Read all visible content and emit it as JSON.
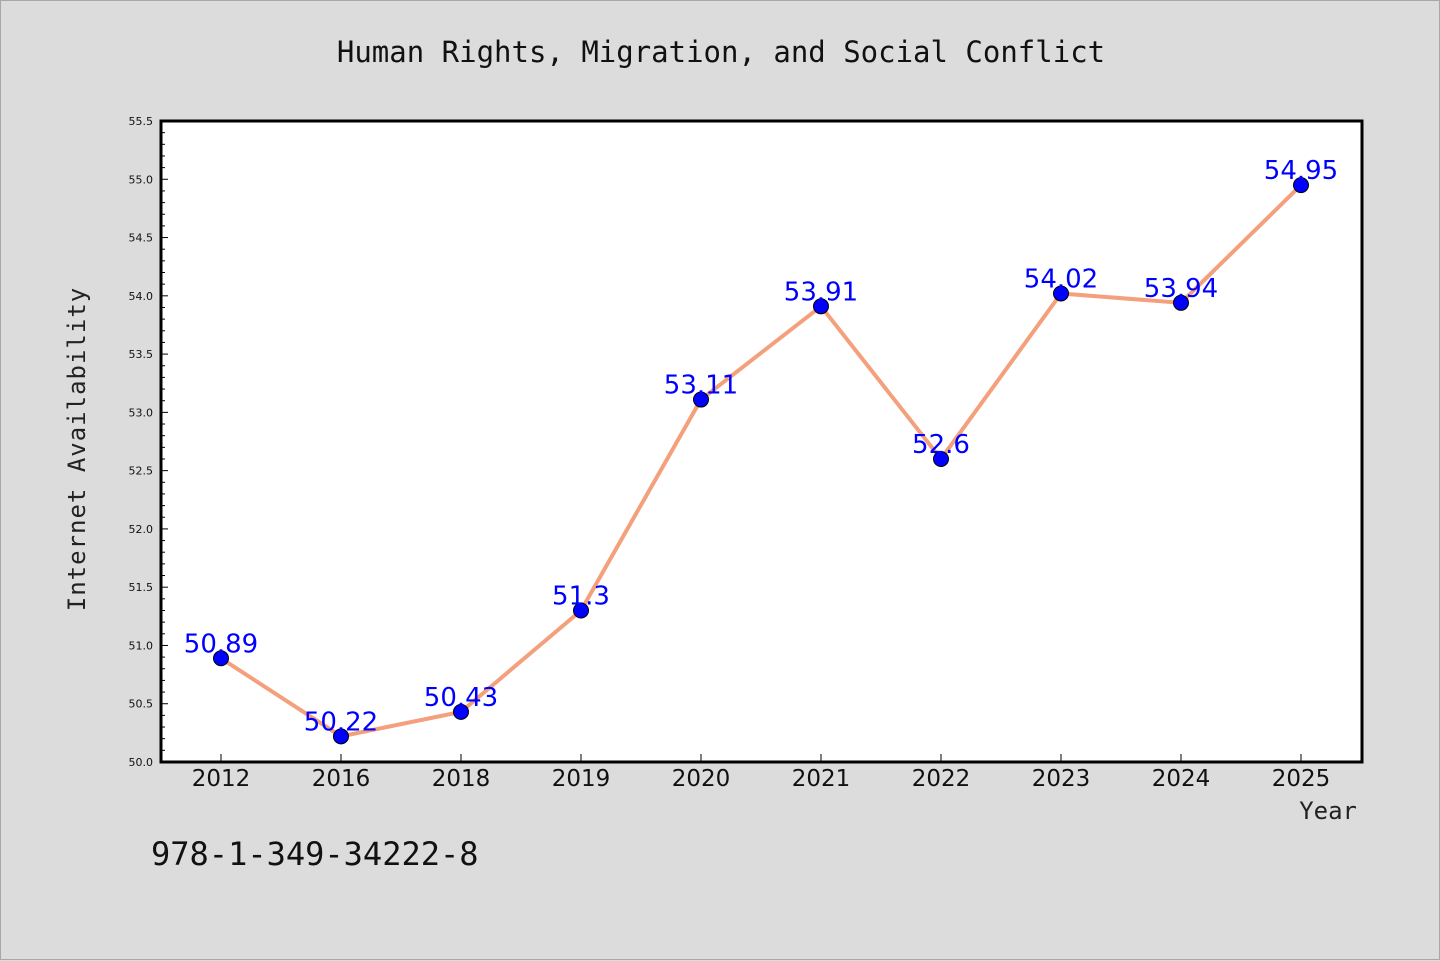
{
  "chart_data": {
    "type": "line",
    "title": "Human Rights, Migration, and Social Conflict",
    "xlabel": "Year",
    "ylabel": "Internet Availability",
    "categories": [
      "2012",
      "2016",
      "2018",
      "2019",
      "2020",
      "2021",
      "2022",
      "2023",
      "2024",
      "2025"
    ],
    "values": [
      50.89,
      50.22,
      50.43,
      51.3,
      53.11,
      53.91,
      52.6,
      54.02,
      53.94,
      54.95
    ],
    "data_labels": [
      "50.89",
      "50.22",
      "50.43",
      "51.3",
      "53.11",
      "53.91",
      "52.6",
      "54.02",
      "53.94",
      "54.95"
    ],
    "ylim": [
      50.0,
      55.5
    ],
    "yticks": [
      "50.0",
      "50.5",
      "51.0",
      "51.5",
      "52.0",
      "52.5",
      "53.0",
      "53.5",
      "54.0",
      "54.5",
      "55.0",
      "55.5"
    ],
    "grid": false,
    "legend": "none",
    "line_color": "#f4a07c",
    "marker_color": "#0000ff",
    "label_color": "#0000ff"
  },
  "annotation": "978-1-349-34222-8"
}
